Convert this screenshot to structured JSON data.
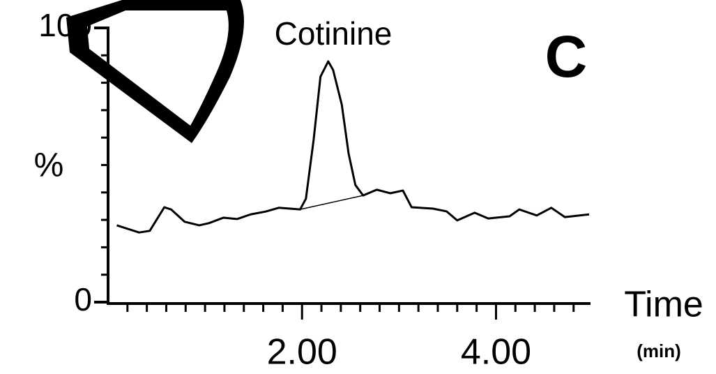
{
  "chart_data": {
    "type": "line",
    "panel_label": "C",
    "annotation": "Cotinine",
    "xlabel": "Time",
    "xunit": "(min)",
    "ylabel": "%",
    "x": [
      0.09,
      0.32,
      0.43,
      0.58,
      0.65,
      0.79,
      0.94,
      1.04,
      1.19,
      1.33,
      1.47,
      1.62,
      1.76,
      1.98,
      2.04,
      2.12,
      2.19,
      2.27,
      2.32,
      2.41,
      2.48,
      2.55,
      2.63,
      2.77,
      2.91,
      3.04,
      3.13,
      3.35,
      3.49,
      3.6,
      3.78,
      3.92,
      4.14,
      4.24,
      4.42,
      4.57,
      4.71,
      4.96
    ],
    "series": [
      {
        "color": "#000000",
        "values": [
          28,
          25.4,
          26,
          34.6,
          33.8,
          29.3,
          28,
          28.8,
          30.8,
          30.3,
          32,
          33,
          34.4,
          33.8,
          37.7,
          59.3,
          82.2,
          87.8,
          84.7,
          72,
          54.2,
          42.7,
          38.9,
          41,
          39.7,
          40.7,
          34.6,
          34.1,
          33.1,
          29.8,
          32.6,
          30.5,
          31.3,
          33.8,
          31.6,
          34.4,
          31,
          32
        ]
      }
    ],
    "integration_baseline": {
      "x": [
        1.98,
        2.63
      ],
      "values": [
        33.8,
        38.9
      ]
    },
    "xlim": [
      0,
      4.96
    ],
    "ylim": [
      0,
      100
    ],
    "xticks": [
      {
        "value": 2,
        "label": "2.00"
      },
      {
        "value": 4,
        "label": "4.00"
      }
    ],
    "yticks": [
      0,
      100
    ],
    "x_minor_ticks": [
      0.2,
      0.4,
      0.6,
      0.8,
      1,
      1.2,
      1.4,
      1.6,
      1.8,
      2.2,
      2.4,
      2.6,
      2.8,
      3,
      3.2,
      3.4,
      3.6,
      3.8,
      4.2,
      4.4,
      4.6,
      4.8
    ],
    "y_minor_ticks": [
      10,
      20,
      30,
      40,
      50,
      60,
      70,
      80,
      90
    ]
  }
}
